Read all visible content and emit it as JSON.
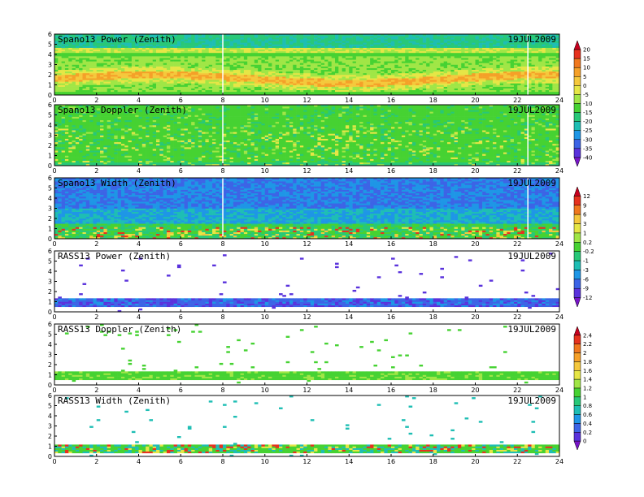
{
  "chart_data": [
    {
      "type": "heatmap",
      "title": "Spano13 Power (Zenith)",
      "date": "19JUL2009",
      "x_ticks": [
        "0",
        "2",
        "4",
        "6",
        "8",
        "10",
        "12",
        "14",
        "16",
        "18",
        "20",
        "22",
        "24"
      ],
      "y_ticks": [
        "0",
        "1",
        "2",
        "3",
        "4",
        "5",
        "6"
      ],
      "xlim": [
        0,
        24
      ],
      "ylim": [
        0,
        6
      ],
      "colorbar_group": 0,
      "pattern": "power_bands",
      "sparse": false,
      "description_values": {
        "dominant_band_height_km": [
          0.5,
          4.5
        ],
        "peak_band_height_km": [
          1.2,
          2.5
        ]
      }
    },
    {
      "type": "heatmap",
      "title": "Spano13 Doppler (Zenith)",
      "date": "19JUL2009",
      "x_ticks": [
        "0",
        "2",
        "4",
        "6",
        "8",
        "10",
        "12",
        "14",
        "16",
        "18",
        "20",
        "22",
        "24"
      ],
      "y_ticks": [
        "0",
        "1",
        "2",
        "3",
        "4",
        "5",
        "6"
      ],
      "xlim": [
        0,
        24
      ],
      "ylim": [
        0,
        6
      ],
      "colorbar_group": 0,
      "pattern": "doppler_streaks",
      "sparse": false
    },
    {
      "type": "heatmap",
      "title": "Spano13 Width (Zenith)",
      "date": "19JUL2009",
      "x_ticks": [
        "0",
        "2",
        "4",
        "6",
        "8",
        "10",
        "12",
        "14",
        "16",
        "18",
        "20",
        "22",
        "24"
      ],
      "y_ticks": [
        "0",
        "1",
        "2",
        "3",
        "4",
        "5",
        "6"
      ],
      "xlim": [
        0,
        24
      ],
      "ylim": [
        0,
        6
      ],
      "colorbar_group": 1,
      "pattern": "width_field",
      "sparse": false
    },
    {
      "type": "heatmap",
      "title": "RASS13 Power (Zenith)",
      "date": "19JUL2009",
      "x_ticks": [
        "0",
        "2",
        "4",
        "6",
        "8",
        "10",
        "12",
        "14",
        "16",
        "18",
        "20",
        "22",
        "24"
      ],
      "y_ticks": [
        "0",
        "1",
        "2",
        "3",
        "4",
        "5",
        "6"
      ],
      "xlim": [
        0,
        24
      ],
      "ylim": [
        0,
        6
      ],
      "colorbar_group": 1,
      "pattern": "rass_power",
      "sparse": true
    },
    {
      "type": "heatmap",
      "title": "RASS13 Doppler (Zenith)",
      "date": "19JUL2009",
      "x_ticks": [
        "0",
        "2",
        "4",
        "6",
        "8",
        "10",
        "12",
        "14",
        "16",
        "18",
        "20",
        "22",
        "24"
      ],
      "y_ticks": [
        "0",
        "1",
        "2",
        "3",
        "4",
        "5",
        "6"
      ],
      "xlim": [
        0,
        24
      ],
      "ylim": [
        0,
        6
      ],
      "colorbar_group": 2,
      "pattern": "rass_doppler",
      "sparse": true
    },
    {
      "type": "heatmap",
      "title": "RASS13 Width (Zenith)",
      "date": "19JUL2009",
      "x_ticks": [
        "0",
        "2",
        "4",
        "6",
        "8",
        "10",
        "12",
        "14",
        "16",
        "18",
        "20",
        "22",
        "24"
      ],
      "y_ticks": [
        "0",
        "1",
        "2",
        "3",
        "4",
        "5",
        "6"
      ],
      "xlim": [
        0,
        24
      ],
      "ylim": [
        0,
        6
      ],
      "colorbar_group": 2,
      "pattern": "rass_width",
      "sparse": true
    }
  ],
  "colorbars": [
    {
      "labels": [
        "20",
        "15",
        "10",
        "5",
        "0",
        "-5",
        "-10",
        "-15",
        "-20",
        "-25",
        "-30",
        "-35",
        "-40"
      ],
      "colors": [
        "#c8001e",
        "#e6321e",
        "#f0781e",
        "#f5a028",
        "#f5c83c",
        "#e6e646",
        "#a0e646",
        "#46d232",
        "#28c878",
        "#1ebeb4",
        "#1e96e6",
        "#3c64e6",
        "#5a32dc",
        "#7814c8"
      ]
    },
    {
      "labels": [
        "12",
        "9",
        "6",
        "3",
        "1",
        "0.2",
        "-0.2",
        "-1",
        "-3",
        "-6",
        "-9",
        "-12"
      ],
      "colors": [
        "#c8001e",
        "#e6321e",
        "#f0781e",
        "#f5c83c",
        "#e6e646",
        "#a0e646",
        "#46d232",
        "#28c878",
        "#1ebeb4",
        "#1e96e6",
        "#3c64e6",
        "#5a32dc",
        "#7814c8"
      ]
    },
    {
      "labels": [
        "2.4",
        "2.2",
        "2",
        "1.8",
        "1.6",
        "1.4",
        "1.2",
        "1",
        "0.8",
        "0.6",
        "0.4",
        "0.2",
        "0"
      ],
      "colors": [
        "#c8001e",
        "#e6321e",
        "#f0781e",
        "#f5a028",
        "#f5c83c",
        "#e6e646",
        "#a0e646",
        "#46d232",
        "#28c878",
        "#1ebeb4",
        "#1e96e6",
        "#3c64e6",
        "#5a32dc",
        "#7814c8"
      ]
    }
  ]
}
